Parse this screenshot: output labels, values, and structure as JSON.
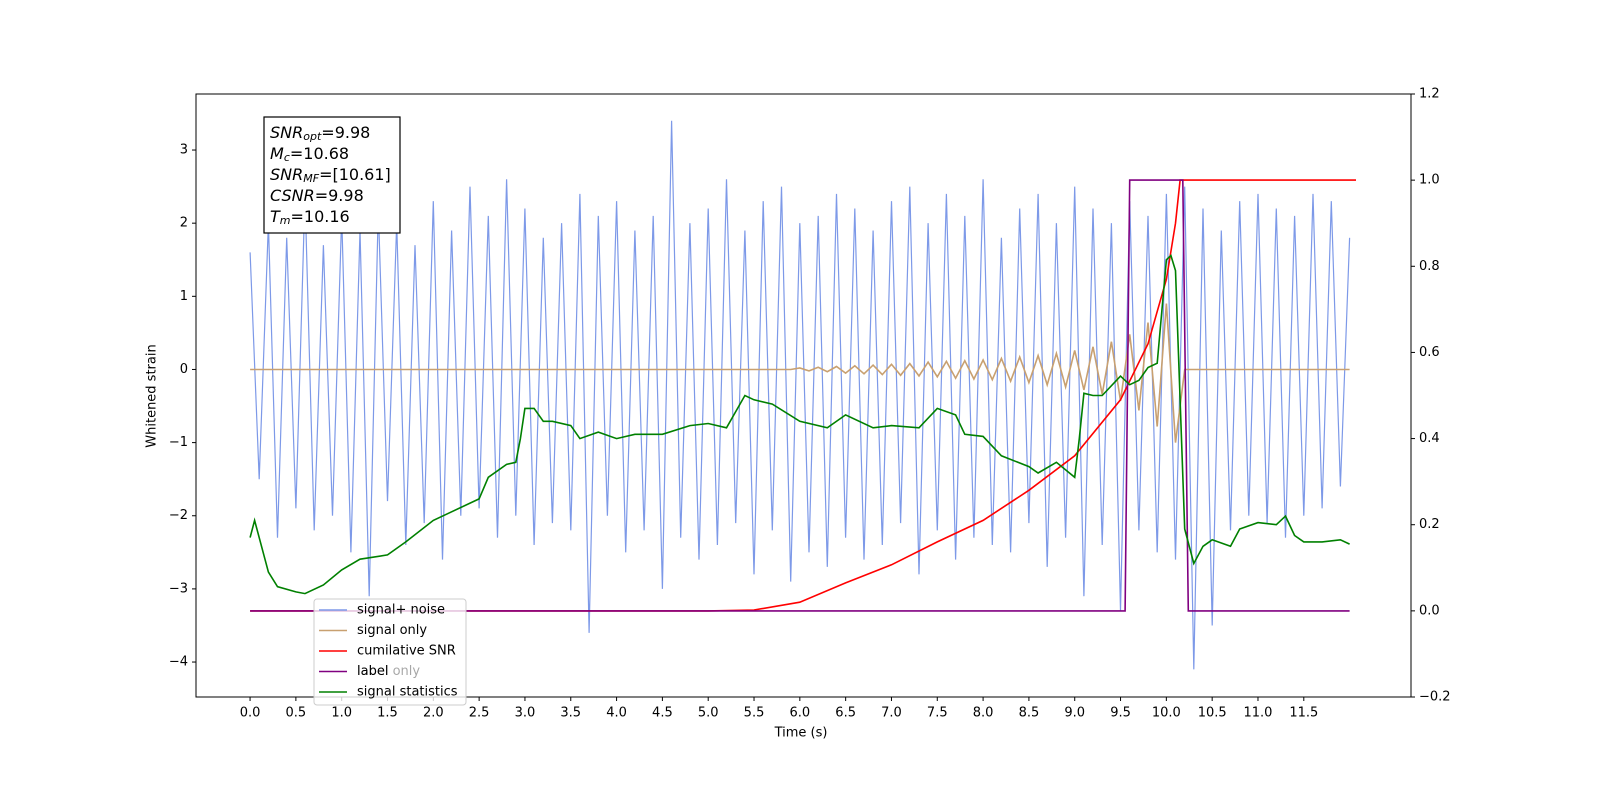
{
  "chart_data": {
    "type": "line",
    "xlabel": "Time (s)",
    "ylabel": "Whitened strain",
    "xlim": [
      -0.59,
      12.67
    ],
    "ylim": [
      -4.478,
      3.766
    ],
    "y2lim": [
      -0.2,
      1.2
    ],
    "xticks": [
      {
        "value": 0,
        "label": "0.0"
      },
      0.5,
      {
        "value": 1,
        "label": "1.0"
      },
      1.5,
      {
        "value": 2,
        "label": "2.0"
      },
      2.5,
      {
        "value": 3,
        "label": "3.0"
      },
      3.5,
      {
        "value": 4,
        "label": "4.0"
      },
      4.5,
      {
        "value": 5,
        "label": "5.0"
      },
      5.5,
      {
        "value": 6,
        "label": "6.0"
      },
      6.5,
      {
        "value": 7,
        "label": "7.0"
      },
      7.5,
      {
        "value": 8,
        "label": "8.0"
      },
      8.5,
      {
        "value": 9,
        "label": "9.0"
      },
      9.5,
      {
        "value": 10,
        "label": "10.0"
      },
      10.5,
      {
        "value": 11,
        "label": "11.0"
      },
      11.5
    ],
    "yticks": [
      {
        "value": -4,
        "label": "−4"
      },
      {
        "value": -3,
        "label": "−3"
      },
      {
        "value": -2,
        "label": "−2"
      },
      {
        "value": -1,
        "label": "−1"
      },
      0,
      1,
      2,
      3
    ],
    "y2ticks": [
      {
        "value": -0.2,
        "label": "−0.2"
      },
      {
        "value": 0,
        "label": "0.0"
      },
      0.2,
      0.4,
      0.6,
      0.8,
      {
        "value": 1,
        "label": "1.0"
      },
      1.2
    ],
    "x": [
      0.0,
      0.1,
      0.2,
      0.3,
      0.4,
      0.5,
      0.6,
      0.7,
      0.8,
      0.9,
      1.0,
      1.1,
      1.2,
      1.3,
      1.4,
      1.5,
      1.6,
      1.7,
      1.8,
      1.9,
      2.0,
      2.1,
      2.2,
      2.3,
      2.4,
      2.5,
      2.6,
      2.7,
      2.8,
      2.9,
      3.0,
      3.1,
      3.2,
      3.3,
      3.4,
      3.5,
      3.6,
      3.7,
      3.8,
      3.9,
      4.0,
      4.1,
      4.2,
      4.3,
      4.4,
      4.5,
      4.6,
      4.7,
      4.8,
      4.9,
      5.0,
      5.1,
      5.2,
      5.3,
      5.4,
      5.5,
      5.6,
      5.7,
      5.8,
      5.9,
      6.0,
      6.1,
      6.2,
      6.3,
      6.4,
      6.5,
      6.6,
      6.7,
      6.8,
      6.9,
      7.0,
      7.1,
      7.2,
      7.3,
      7.4,
      7.5,
      7.6,
      7.7,
      7.8,
      7.9,
      8.0,
      8.1,
      8.2,
      8.3,
      8.4,
      8.5,
      8.6,
      8.7,
      8.8,
      8.9,
      9.0,
      9.1,
      9.2,
      9.3,
      9.4,
      9.5,
      9.6,
      9.7,
      9.8,
      9.9,
      10.0,
      10.1,
      10.2,
      10.3,
      10.4,
      10.5,
      10.6,
      10.7,
      10.8,
      10.9,
      11.0,
      11.1,
      11.2,
      11.3,
      11.4,
      11.5,
      11.6,
      11.7,
      11.8,
      11.9,
      12.0
    ],
    "series": [
      {
        "name": "signal+ noise",
        "color": "#6f8ee6",
        "values": [
          1.6,
          -1.5,
          2.0,
          -2.3,
          1.8,
          -1.9,
          2.4,
          -2.2,
          1.7,
          -2.0,
          2.1,
          -2.5,
          1.9,
          -3.1,
          2.2,
          -1.8,
          2.0,
          -2.4,
          1.7,
          -2.1,
          2.3,
          -2.6,
          1.9,
          -2.0,
          2.5,
          -1.9,
          2.1,
          -2.3,
          2.6,
          -2.0,
          2.2,
          -2.4,
          1.8,
          -2.1,
          2.0,
          -2.2,
          2.4,
          -3.6,
          2.1,
          -2.0,
          2.3,
          -2.5,
          1.9,
          -2.2,
          2.1,
          -3.0,
          3.4,
          -2.3,
          2.0,
          -2.6,
          2.2,
          -2.4,
          2.6,
          -2.1,
          1.9,
          -2.8,
          2.3,
          -2.2,
          2.5,
          -2.9,
          2.0,
          -2.5,
          2.1,
          -2.7,
          2.4,
          -2.3,
          2.2,
          -2.6,
          1.9,
          -2.4,
          2.3,
          -2.1,
          2.5,
          -2.8,
          2.0,
          -2.2,
          2.4,
          -2.6,
          2.1,
          -2.3,
          2.6,
          -2.4,
          1.8,
          -2.5,
          2.2,
          -2.1,
          2.4,
          -2.7,
          2.0,
          -2.3,
          2.5,
          -3.1,
          2.2,
          -2.4,
          2.0,
          -3.3,
          2.3,
          -2.2,
          2.1,
          -2.5,
          2.4,
          -2.6,
          2.5,
          -4.1,
          2.2,
          -3.5,
          1.9,
          -2.2,
          2.3,
          -2.0,
          2.4,
          -2.1,
          2.2,
          -2.3,
          2.1,
          -2.0,
          2.4,
          -1.9,
          2.3,
          -1.6,
          1.8
        ]
      },
      {
        "name": "signal only",
        "color": "#c8a070",
        "values": [
          0,
          0,
          0,
          0,
          0,
          0,
          0,
          0,
          0,
          0,
          0,
          0,
          0,
          0,
          0,
          0,
          0,
          0,
          0,
          0,
          0,
          0,
          0,
          0,
          0,
          0,
          0,
          0,
          0,
          0,
          0,
          0,
          0,
          0,
          0,
          0,
          0,
          0,
          0,
          0,
          0,
          0,
          0,
          0,
          0,
          0,
          0,
          0,
          0,
          0,
          0,
          0,
          0,
          0,
          0,
          0,
          0,
          0,
          0,
          0,
          0.02,
          -0.02,
          0.03,
          -0.03,
          0.04,
          -0.05,
          0.05,
          -0.06,
          0.06,
          -0.07,
          0.07,
          -0.08,
          0.08,
          -0.09,
          0.1,
          -0.1,
          0.11,
          -0.12,
          0.12,
          -0.13,
          0.13,
          -0.14,
          0.15,
          -0.16,
          0.17,
          -0.18,
          0.19,
          -0.21,
          0.22,
          -0.24,
          0.26,
          -0.28,
          0.31,
          -0.34,
          0.38,
          -0.43,
          0.48,
          -0.56,
          0.64,
          -0.78,
          0.9,
          -1.0,
          0,
          0,
          0,
          0,
          0,
          0,
          0,
          0,
          0,
          0,
          0,
          0,
          0,
          0,
          0,
          0,
          0,
          0,
          0
        ]
      },
      {
        "name": "cumilative SNR",
        "color": "#ff0000",
        "axis": "y2",
        "x": [
          0,
          5,
          5.5,
          6,
          6.5,
          7,
          7.5,
          8,
          8.5,
          9,
          9.5,
          9.8,
          10,
          10.1,
          10.15,
          12.07
        ],
        "values": [
          0,
          0,
          0.002,
          0.02,
          0.065,
          0.107,
          0.16,
          0.21,
          0.28,
          0.36,
          0.49,
          0.62,
          0.77,
          0.9,
          1.0,
          1.0
        ]
      },
      {
        "name": "label",
        "color": "#800080",
        "axis": "y2",
        "x": [
          0,
          9.55,
          9.6,
          10.18,
          10.24,
          12.0
        ],
        "values": [
          0,
          0,
          1,
          1,
          0,
          0
        ]
      },
      {
        "name": "label only",
        "color": "#ffa500",
        "axis": "y2",
        "x": [],
        "values": []
      },
      {
        "name": "signal statistics",
        "color": "#008000",
        "axis": "y2",
        "x": [
          0,
          0.05,
          0.2,
          0.3,
          0.5,
          0.6,
          0.8,
          1.0,
          1.2,
          1.5,
          1.7,
          2.0,
          2.2,
          2.5,
          2.6,
          2.8,
          2.9,
          2.95,
          3.0,
          3.1,
          3.2,
          3.3,
          3.5,
          3.6,
          3.8,
          4.0,
          4.2,
          4.5,
          4.8,
          5.0,
          5.2,
          5.4,
          5.5,
          5.7,
          6.0,
          6.3,
          6.5,
          6.8,
          7.0,
          7.3,
          7.5,
          7.7,
          7.8,
          8.0,
          8.2,
          8.5,
          8.6,
          8.8,
          9.0,
          9.05,
          9.1,
          9.2,
          9.3,
          9.5,
          9.6,
          9.7,
          9.8,
          9.9,
          10.0,
          10.05,
          10.1,
          10.2,
          10.3,
          10.4,
          10.5,
          10.7,
          10.8,
          11.0,
          11.2,
          11.3,
          11.4,
          11.5,
          11.7,
          11.9,
          12.0
        ],
        "values": [
          0.17,
          0.21,
          0.09,
          0.056,
          0.044,
          0.04,
          0.06,
          0.095,
          0.12,
          0.13,
          0.16,
          0.21,
          0.23,
          0.26,
          0.31,
          0.34,
          0.345,
          0.4,
          0.47,
          0.47,
          0.44,
          0.44,
          0.43,
          0.4,
          0.415,
          0.4,
          0.41,
          0.41,
          0.43,
          0.435,
          0.425,
          0.5,
          0.49,
          0.48,
          0.44,
          0.425,
          0.455,
          0.425,
          0.43,
          0.425,
          0.47,
          0.455,
          0.41,
          0.405,
          0.36,
          0.335,
          0.32,
          0.345,
          0.31,
          0.4,
          0.505,
          0.5,
          0.5,
          0.545,
          0.525,
          0.535,
          0.565,
          0.575,
          0.815,
          0.825,
          0.79,
          0.19,
          0.11,
          0.15,
          0.165,
          0.15,
          0.19,
          0.205,
          0.2,
          0.22,
          0.175,
          0.16,
          0.16,
          0.165,
          0.155
        ]
      }
    ],
    "stats_box": [
      {
        "name": "SNR",
        "sub": "opt",
        "value": "=9.98"
      },
      {
        "name": "M",
        "sub": "c",
        "value": "=10.68"
      },
      {
        "name": "SNR",
        "sub": "MF",
        "value": "=[10.61]"
      },
      {
        "name": "CSNR",
        "sub": null,
        "value": "=9.98"
      },
      {
        "name": "T",
        "sub": "m",
        "value": "=10.16"
      }
    ]
  }
}
